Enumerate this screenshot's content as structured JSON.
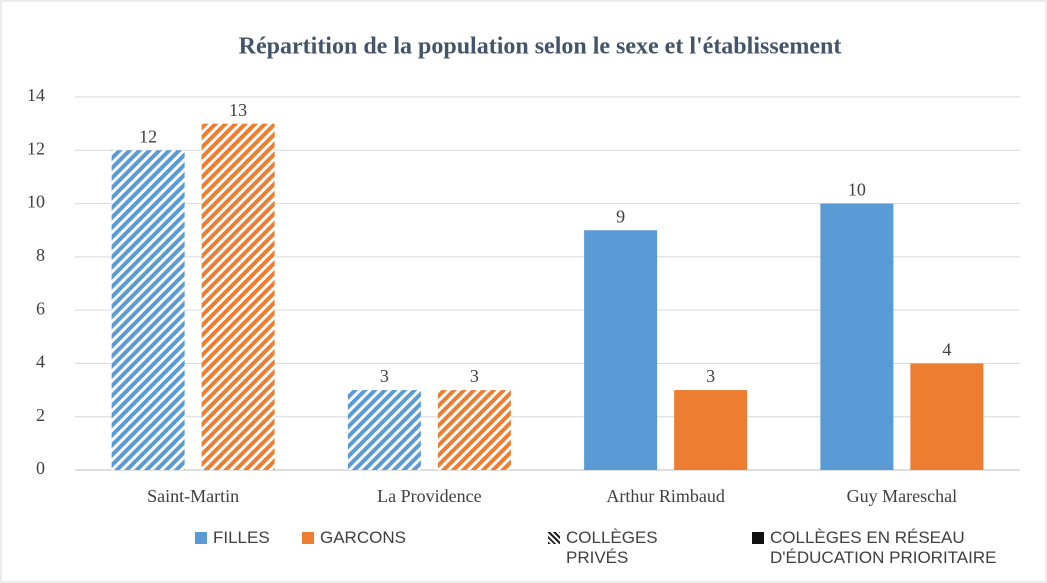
{
  "chart_data": {
    "type": "bar",
    "title": "Répartition de la population selon le sexe et l'établissement",
    "categories": [
      "Saint-Martin",
      "La Providence",
      "Arthur Rimbaud",
      "Guy Mareschal"
    ],
    "series": [
      {
        "name": "FILLES",
        "color": "#5b9bd5",
        "values": [
          12,
          3,
          9,
          10
        ]
      },
      {
        "name": "GARCONS",
        "color": "#ed7d31",
        "values": [
          13,
          3,
          3,
          4
        ]
      }
    ],
    "category_patterns": [
      "hatched",
      "hatched",
      "solid",
      "solid"
    ],
    "pattern_legend": [
      {
        "label": "COLLÈGES PRIVÉS",
        "pattern": "hatched"
      },
      {
        "label": "COLLÈGES EN RÉSEAU D'ÉDUCATION PRIORITAIRE",
        "pattern": "solid"
      }
    ],
    "ylim": [
      0,
      14
    ],
    "yticks": [
      0,
      2,
      4,
      6,
      8,
      10,
      12,
      14
    ],
    "grid": true
  }
}
